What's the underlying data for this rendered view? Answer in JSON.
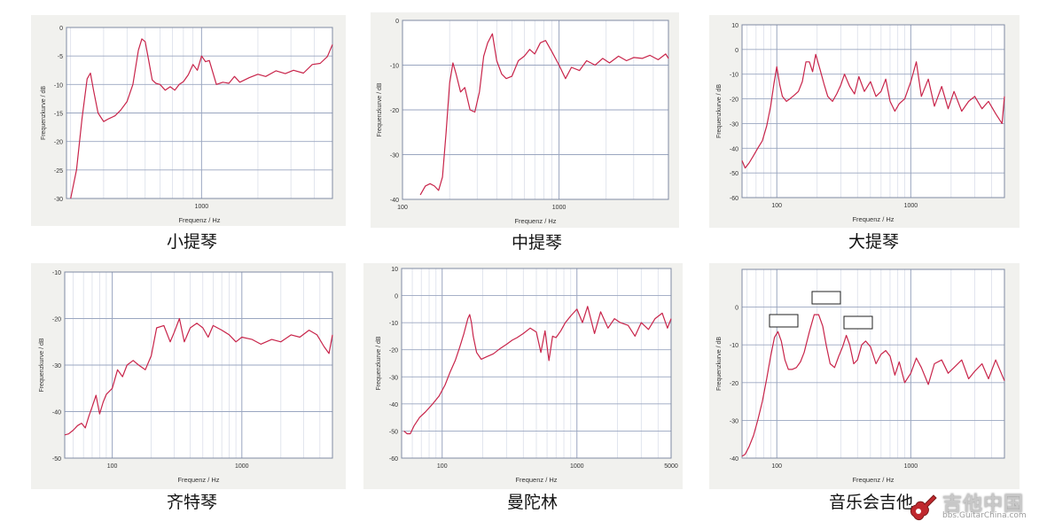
{
  "chart_data": [
    {
      "type": "line",
      "caption": "小提琴",
      "title": "",
      "xlabel": "Frequenz / Hz",
      "ylabel": "Frequenzkurve / dB",
      "xscale": "log",
      "xlim": [
        190,
        5000
      ],
      "ylim": [
        -30,
        0
      ],
      "yticks": [
        0,
        -5,
        -10,
        -15,
        -20,
        -25,
        -30
      ],
      "xticks": [
        1000
      ],
      "grid": true,
      "series": [
        {
          "color": "#c8244a",
          "x": [
            200,
            215,
            230,
            245,
            255,
            265,
            280,
            300,
            320,
            345,
            370,
            400,
            430,
            460,
            480,
            500,
            520,
            545,
            570,
            600,
            640,
            680,
            720,
            760,
            800,
            850,
            900,
            950,
            1000,
            1050,
            1100,
            1200,
            1300,
            1400,
            1500,
            1600,
            1800,
            2000,
            2200,
            2500,
            2800,
            3100,
            3500,
            3900,
            4300,
            4700,
            5000
          ],
          "y": [
            -30,
            -25,
            -16,
            -9,
            -8,
            -11,
            -15,
            -16.5,
            -16,
            -15.5,
            -14.5,
            -13,
            -10,
            -4,
            -2,
            -2.5,
            -5.5,
            -9.2,
            -9.8,
            -10,
            -11,
            -10.4,
            -11,
            -10,
            -9.5,
            -8.3,
            -6.5,
            -7.5,
            -5,
            -6,
            -5.8,
            -10,
            -9.6,
            -9.8,
            -8.6,
            -9.6,
            -8.8,
            -8.2,
            -8.6,
            -7.6,
            -8.1,
            -7.5,
            -8,
            -6.5,
            -6.3,
            -5.1,
            -3
          ]
        }
      ]
    },
    {
      "type": "line",
      "caption": "中提琴",
      "title": "",
      "xlabel": "Frequenz / Hz",
      "ylabel": "Frequenzkurve / dB",
      "xscale": "log",
      "xlim": [
        100,
        5000
      ],
      "ylim": [
        -40,
        0
      ],
      "yticks": [
        0,
        -10,
        -20,
        -30,
        -40
      ],
      "xticks": [
        100,
        1000
      ],
      "grid": true,
      "series": [
        {
          "color": "#c8244a",
          "x": [
            130,
            140,
            150,
            160,
            170,
            180,
            190,
            200,
            210,
            220,
            235,
            250,
            270,
            290,
            310,
            330,
            350,
            375,
            400,
            430,
            460,
            500,
            550,
            600,
            650,
            700,
            760,
            820,
            900,
            1000,
            1100,
            1200,
            1350,
            1500,
            1700,
            1900,
            2100,
            2400,
            2700,
            3000,
            3400,
            3800,
            4300,
            4800,
            5000
          ],
          "y": [
            -39,
            -37,
            -36.5,
            -37,
            -38,
            -35,
            -25,
            -14,
            -9.5,
            -12,
            -16,
            -15,
            -20,
            -20.5,
            -16,
            -8,
            -5,
            -3,
            -9,
            -12,
            -13,
            -12.5,
            -9,
            -8,
            -6.5,
            -7.5,
            -5,
            -4.5,
            -7,
            -10,
            -13,
            -10.5,
            -11.2,
            -9,
            -10,
            -8.5,
            -9.5,
            -8,
            -9,
            -8.3,
            -8.5,
            -7.8,
            -8.8,
            -7.5,
            -8.5
          ]
        }
      ]
    },
    {
      "type": "line",
      "caption": "大提琴",
      "title": "",
      "xlabel": "Frequenz / Hz",
      "ylabel": "Frequenzkurve / dB",
      "xscale": "log",
      "xlim": [
        55,
        5000
      ],
      "ylim": [
        -60,
        10
      ],
      "yticks": [
        10,
        0,
        -10,
        -20,
        -30,
        -40,
        -50,
        -60
      ],
      "xticks": [
        100,
        1000
      ],
      "grid": true,
      "series": [
        {
          "color": "#c8244a",
          "x": [
            55,
            58,
            62,
            67,
            72,
            78,
            84,
            90,
            95,
            100,
            105,
            110,
            118,
            125,
            135,
            145,
            155,
            165,
            175,
            185,
            195,
            210,
            225,
            240,
            260,
            280,
            300,
            320,
            350,
            380,
            410,
            450,
            500,
            550,
            600,
            650,
            700,
            760,
            820,
            900,
            1000,
            1100,
            1200,
            1350,
            1500,
            1700,
            1900,
            2100,
            2400,
            2700,
            3000,
            3400,
            3800,
            4300,
            4800,
            5000
          ],
          "y": [
            -45,
            -48,
            -46,
            -43,
            -40,
            -37,
            -31,
            -23,
            -14,
            -7,
            -14,
            -19,
            -21,
            -20,
            -18.5,
            -17,
            -13,
            -5,
            -5,
            -9,
            -2,
            -8,
            -14,
            -19,
            -21,
            -18,
            -14.5,
            -10,
            -15,
            -18,
            -11,
            -17,
            -13,
            -19,
            -17,
            -12,
            -21,
            -25,
            -22,
            -20,
            -13,
            -5,
            -19,
            -12,
            -23,
            -15,
            -24,
            -17,
            -25,
            -21,
            -19,
            -24,
            -21,
            -26,
            -30,
            -19
          ]
        }
      ]
    },
    {
      "type": "line",
      "caption": "齐特琴",
      "title": "",
      "xlabel": "Frequenz / Hz",
      "ylabel": "Frequenzkurve / dB",
      "xscale": "log",
      "xlim": [
        43,
        5000
      ],
      "ylim": [
        -50,
        -10
      ],
      "yticks": [
        -10,
        -20,
        -30,
        -40,
        -50
      ],
      "xticks": [
        100,
        1000
      ],
      "grid": true,
      "series": [
        {
          "color": "#c8244a",
          "x": [
            43,
            46,
            50,
            54,
            58,
            62,
            66,
            70,
            75,
            80,
            85,
            90,
            100,
            110,
            120,
            130,
            145,
            160,
            180,
            200,
            220,
            250,
            280,
            300,
            330,
            360,
            400,
            450,
            500,
            550,
            600,
            700,
            800,
            900,
            1000,
            1200,
            1400,
            1700,
            2000,
            2400,
            2800,
            3300,
            3800,
            4300,
            4700,
            5000
          ],
          "y": [
            -45,
            -44.8,
            -44,
            -43,
            -42.5,
            -43.5,
            -41,
            -39,
            -36.5,
            -40.5,
            -38,
            -36.3,
            -35,
            -31,
            -32.5,
            -30,
            -29,
            -30,
            -31,
            -28,
            -22,
            -21.5,
            -25,
            -23,
            -20,
            -25,
            -22,
            -21,
            -22,
            -24,
            -21.5,
            -22.5,
            -23.5,
            -25,
            -24,
            -24.5,
            -25.5,
            -24.5,
            -25,
            -23.5,
            -24,
            -22.5,
            -23.5,
            -26,
            -27.5,
            -23.5
          ]
        }
      ]
    },
    {
      "type": "line",
      "caption": "曼陀林",
      "title": "",
      "xlabel": "Frequenz / Hz",
      "ylabel": "Frequenzkurve / dB",
      "xscale": "log",
      "xlim": [
        50,
        5000
      ],
      "ylim": [
        -60,
        10
      ],
      "yticks": [
        10,
        0,
        -10,
        -20,
        -30,
        -40,
        -50,
        -60
      ],
      "xticks": [
        100,
        1000,
        5000
      ],
      "grid": true,
      "series": [
        {
          "color": "#c8244a",
          "x": [
            52,
            55,
            58,
            62,
            68,
            75,
            85,
            95,
            105,
            115,
            125,
            135,
            145,
            155,
            160,
            165,
            170,
            180,
            195,
            215,
            240,
            270,
            300,
            330,
            360,
            400,
            450,
            500,
            540,
            580,
            620,
            660,
            700,
            760,
            820,
            900,
            1000,
            1100,
            1200,
            1350,
            1500,
            1700,
            1900,
            2100,
            2400,
            2700,
            3000,
            3400,
            3800,
            4300,
            4700,
            5000
          ],
          "y": [
            -50,
            -51,
            -51,
            -48,
            -45,
            -43,
            -40,
            -37,
            -33,
            -28,
            -24,
            -19,
            -14,
            -8.5,
            -7,
            -10,
            -15,
            -21,
            -23.5,
            -22.5,
            -21.5,
            -19.5,
            -18,
            -16.5,
            -15.5,
            -14,
            -12,
            -13.5,
            -21,
            -13,
            -24,
            -15,
            -15.5,
            -13,
            -10,
            -7.5,
            -5,
            -10,
            -4,
            -14,
            -6,
            -12,
            -8.5,
            -10,
            -11,
            -15,
            -10,
            -12.5,
            -8.5,
            -6.5,
            -12,
            -8.5
          ]
        }
      ]
    },
    {
      "type": "line",
      "caption": "音乐会吉他",
      "title": "",
      "xlabel": "Frequenz / Hz",
      "ylabel": "Frequenzkurve / dB",
      "xscale": "log",
      "xlim": [
        55,
        5000
      ],
      "ylim": [
        -40,
        10
      ],
      "yticks": [
        0,
        -10,
        -20,
        -30,
        -40
      ],
      "xticks": [
        100,
        1000
      ],
      "grid": true,
      "annotation_boxes": 3,
      "series": [
        {
          "color": "#c8244a",
          "x": [
            55,
            58,
            62,
            67,
            72,
            78,
            84,
            90,
            96,
            102,
            108,
            115,
            122,
            130,
            140,
            150,
            160,
            175,
            190,
            205,
            220,
            235,
            250,
            270,
            290,
            310,
            330,
            350,
            375,
            400,
            430,
            460,
            500,
            550,
            600,
            650,
            700,
            760,
            820,
            900,
            1000,
            1100,
            1200,
            1350,
            1500,
            1700,
            1900,
            2100,
            2400,
            2700,
            3000,
            3400,
            3800,
            4300,
            4800,
            5000
          ],
          "y": [
            -39.5,
            -39,
            -37,
            -34,
            -30,
            -25,
            -19,
            -13,
            -8,
            -6.5,
            -9,
            -14,
            -16.5,
            -16.5,
            -16,
            -14.5,
            -12,
            -6.5,
            -2,
            -2,
            -5,
            -10.5,
            -15,
            -16,
            -13,
            -10.5,
            -7.5,
            -10,
            -15,
            -14,
            -10,
            -9,
            -10.5,
            -15,
            -12.5,
            -11.5,
            -13,
            -18,
            -14.5,
            -20,
            -17.5,
            -13.5,
            -16,
            -20.5,
            -15,
            -14,
            -17.5,
            -16,
            -14,
            -19,
            -17,
            -15,
            -19,
            -14,
            -18,
            -19.5
          ]
        }
      ]
    }
  ],
  "watermark": {
    "text": "吉他中国",
    "url": "bbs.GuitarChina.com"
  },
  "colors": {
    "curve": "#c8244a",
    "grid_major": "#9aa6c0",
    "grid_minor": "#d5dae6",
    "panel_bg": "#f1f1ee",
    "plot_bg": "#ffffff"
  }
}
